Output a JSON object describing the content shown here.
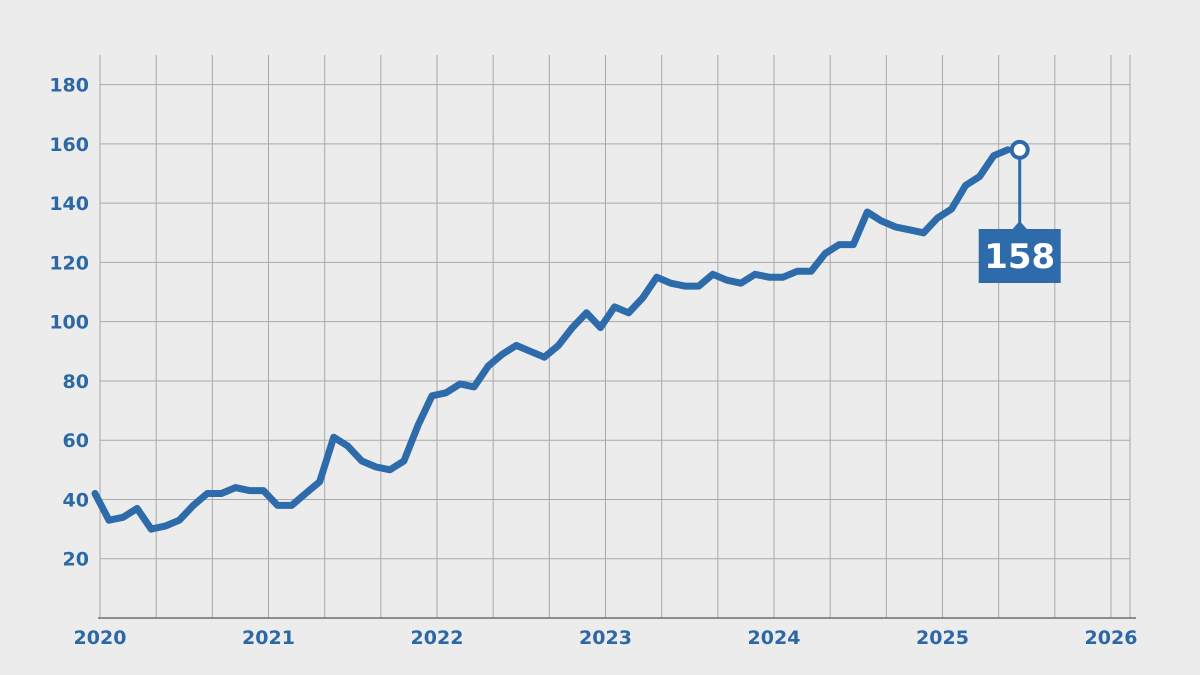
{
  "chart_data": {
    "type": "line",
    "title": "",
    "xlabel": "",
    "ylabel": "",
    "ylim": [
      0,
      190
    ],
    "xlim": [
      "2020-01",
      "2026-04"
    ],
    "y_ticks": [
      20,
      40,
      60,
      80,
      100,
      120,
      140,
      160,
      180
    ],
    "x_ticks": [
      "2020",
      "2021",
      "2022",
      "2023",
      "2024",
      "2025",
      "2026"
    ],
    "grid": true,
    "series": [
      {
        "color": "#2e6bab",
        "x": [
          "2020-01",
          "2020-02",
          "2020-03",
          "2020-04",
          "2020-05",
          "2020-06",
          "2020-07",
          "2020-08",
          "2020-09",
          "2020-10",
          "2020-11",
          "2020-12",
          "2021-01",
          "2021-02",
          "2021-03",
          "2021-04",
          "2021-05",
          "2021-06",
          "2021-07",
          "2021-08",
          "2021-09",
          "2021-10",
          "2021-11",
          "2021-12",
          "2022-01",
          "2022-02",
          "2022-03",
          "2022-04",
          "2022-05",
          "2022-06",
          "2022-07",
          "2022-08",
          "2022-09",
          "2022-10",
          "2022-11",
          "2022-12",
          "2023-01",
          "2023-02",
          "2023-03",
          "2023-04",
          "2023-05",
          "2023-06",
          "2023-07",
          "2023-08",
          "2023-09",
          "2023-10",
          "2023-11",
          "2023-12",
          "2024-01",
          "2024-02",
          "2024-03",
          "2024-04",
          "2024-05",
          "2024-06",
          "2024-07",
          "2024-08",
          "2024-09",
          "2024-10",
          "2024-11",
          "2024-12",
          "2025-01",
          "2025-02",
          "2025-03",
          "2025-04",
          "2025-05",
          "2025-06"
        ],
        "values": [
          42,
          33,
          34,
          37,
          30,
          31,
          33,
          38,
          42,
          42,
          44,
          43,
          43,
          38,
          38,
          42,
          46,
          61,
          58,
          53,
          51,
          50,
          53,
          65,
          75,
          76,
          79,
          78,
          85,
          89,
          92,
          90,
          88,
          92,
          98,
          103,
          98,
          105,
          103,
          108,
          115,
          113,
          112,
          112,
          116,
          114,
          113,
          116,
          115,
          115,
          117,
          117,
          123,
          126,
          126,
          137,
          134,
          132,
          131,
          130,
          135,
          138,
          146,
          149,
          156,
          158
        ]
      }
    ],
    "annotation": {
      "label": "158",
      "x": "2025-06",
      "y": 158
    }
  }
}
